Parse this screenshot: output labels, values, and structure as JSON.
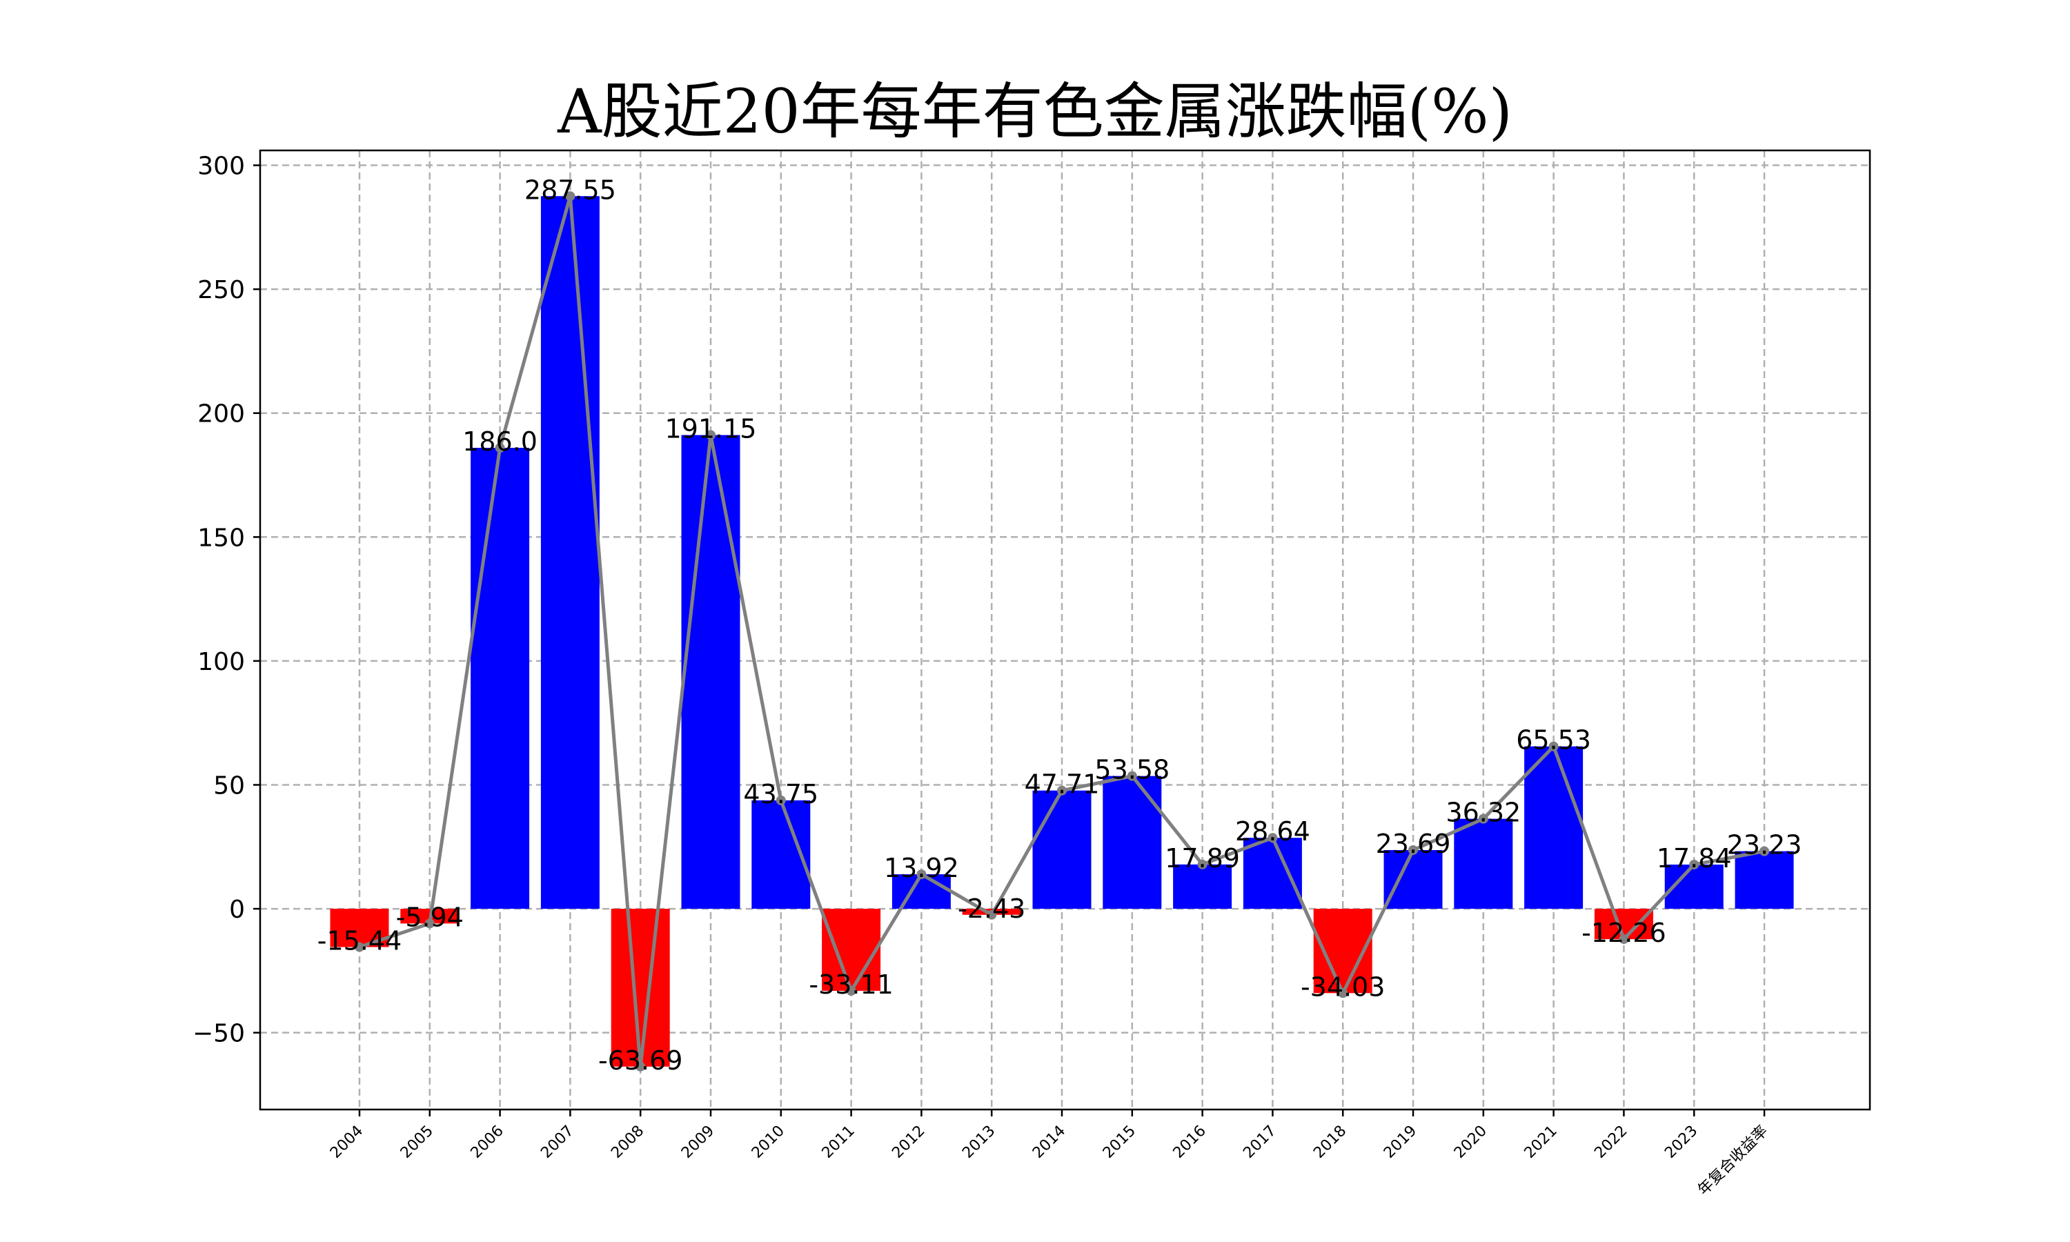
{
  "chart_data": {
    "type": "bar",
    "title": "A股近20年每年有色金属涨跌幅(%)",
    "xlabel": "",
    "ylabel": "",
    "categories": [
      "2004",
      "2005",
      "2006",
      "2007",
      "2008",
      "2009",
      "2010",
      "2011",
      "2012",
      "2013",
      "2014",
      "2015",
      "2016",
      "2017",
      "2018",
      "2019",
      "2020",
      "2021",
      "2022",
      "2023",
      "年复合收益率"
    ],
    "values": [
      -15.44,
      -5.94,
      186.0,
      287.55,
      -63.69,
      191.15,
      43.75,
      -33.11,
      13.92,
      -2.43,
      47.71,
      53.58,
      17.89,
      28.64,
      -34.03,
      23.69,
      36.32,
      65.53,
      -12.26,
      17.84,
      23.23
    ],
    "data_labels": [
      "-15.44",
      "-5.94",
      "186.0",
      "287.55",
      "-63.69",
      "191.15",
      "43.75",
      "-33.11",
      "13.92",
      "-2.43",
      "47.71",
      "53.58",
      "17.89",
      "28.64",
      "-34.03",
      "23.69",
      "36.32",
      "65.53",
      "-12.26",
      "17.84",
      "23.23"
    ],
    "ylim": [
      -81,
      306
    ],
    "yticks": [
      -50,
      0,
      50,
      100,
      150,
      200,
      250,
      300
    ],
    "ytick_labels": [
      "−50",
      "0",
      "50",
      "100",
      "150",
      "200",
      "250",
      "300"
    ],
    "grid": true,
    "overlay_line": true,
    "colors": {
      "positive": "#0000ff",
      "negative": "#ff0000",
      "line": "#808080",
      "grid": "#b0b0b0"
    }
  }
}
